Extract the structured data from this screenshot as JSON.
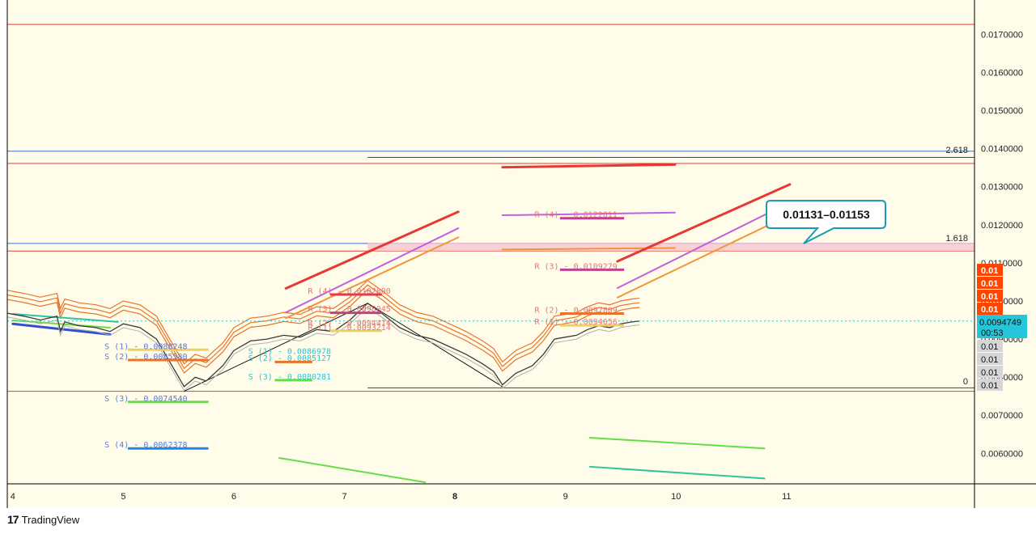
{
  "app": {
    "watermark": "TradingView",
    "logo_glyph": "17"
  },
  "colors": {
    "background": "#fffde9",
    "frame": "#000000",
    "resistance_red": "#e53935",
    "support_green": "#66dd44",
    "envelope": "#e8742c",
    "price_line": "#3a3a3a",
    "current_price_bg": "#26c6da",
    "fib_band": "#f7c6cf",
    "orange_label": "#ff4500",
    "grey_label": "#d6d6d6"
  },
  "chart_data": {
    "type": "line",
    "title": "",
    "xlabel": "",
    "ylabel": "",
    "ylim": [
      0.0052,
      0.0179
    ],
    "x_ticks": [
      {
        "label": "4",
        "x": 4.0
      },
      {
        "label": "5",
        "x": 5.0
      },
      {
        "label": "6",
        "x": 6.0
      },
      {
        "label": "7",
        "x": 7.0
      },
      {
        "label": "8",
        "x": 8.0
      },
      {
        "label": "9",
        "x": 9.0
      },
      {
        "label": "10",
        "x": 10.0
      },
      {
        "label": "11",
        "x": 11.0
      }
    ],
    "bold_x_tick": "8",
    "y_ticks": [
      {
        "label": "0.0170000",
        "v": 0.017
      },
      {
        "label": "0.0160000",
        "v": 0.016
      },
      {
        "label": "0.0150000",
        "v": 0.015
      },
      {
        "label": "0.0140000",
        "v": 0.014
      },
      {
        "label": "0.0130000",
        "v": 0.013
      },
      {
        "label": "0.0120000",
        "v": 0.012
      },
      {
        "label": "0.0110000",
        "v": 0.011
      },
      {
        "label": "0.0100000",
        "v": 0.01
      },
      {
        "label": "0.0090000",
        "v": 0.009
      },
      {
        "label": "0.0080000",
        "v": 0.008
      },
      {
        "label": "0.0070000",
        "v": 0.007
      },
      {
        "label": "0.0060000",
        "v": 0.006
      }
    ],
    "current_price": {
      "label": "0.0094749",
      "countdown": "00:53",
      "value": 0.0094749
    },
    "stacked_labels_orange": [
      "0.01",
      "0.01",
      "0.01",
      "0.01"
    ],
    "stacked_labels_grey": [
      "0.01",
      "0.01",
      "0.01",
      "0.01"
    ],
    "fib_levels": [
      {
        "label": "2.618",
        "value": 0.0138
      },
      {
        "label": "1.618",
        "value": 0.01149
      },
      {
        "label": "0",
        "value": 0.007725
      }
    ],
    "fib_band": [
      0.01131,
      0.01153
    ],
    "callout": "0.01131–0.01153",
    "horizontal_lines": [
      {
        "value": 0.01726,
        "color": "#e53935",
        "from_x": 3.95
      },
      {
        "value": 0.01393,
        "color": "#3a6fd8",
        "from_x": 3.95
      },
      {
        "value": 0.01361,
        "color": "#e53935",
        "from_x": 3.95
      },
      {
        "value": 0.01151,
        "color": "#3a6fd8",
        "from_x": 3.95
      },
      {
        "value": 0.01131,
        "color": "#e53935",
        "from_x": 3.95
      },
      {
        "value": 0.00763,
        "color": "#e53935",
        "from_x": 3.95
      },
      {
        "value": 0.01377,
        "color": "#444444",
        "from_x": 7.21
      },
      {
        "value": 0.00772,
        "color": "#444444",
        "from_x": 7.21
      }
    ],
    "pivot_labels": [
      {
        "text": "S (1) - 0.0088248",
        "x": 4.83,
        "v": 0.008825,
        "color": "#5a7bd8",
        "bar": {
          "x1": 5.04,
          "x2": 5.77,
          "v": 0.00872,
          "c": "#f0d060"
        }
      },
      {
        "text": "S (2) - 0.0085580",
        "x": 4.83,
        "v": 0.008558,
        "color": "#5a7bd8",
        "bar": {
          "x1": 5.04,
          "x2": 5.77,
          "v": 0.00845,
          "c": "#e8742c"
        }
      },
      {
        "text": "S (3) - 0.0074540",
        "x": 4.83,
        "v": 0.007454,
        "color": "#5a7bd8",
        "bar": {
          "x1": 5.04,
          "x2": 5.77,
          "v": 0.00735,
          "c": "#66dd44"
        }
      },
      {
        "text": "S (4) - 0.0062378",
        "x": 4.83,
        "v": 0.006238,
        "color": "#5a7bd8",
        "bar": {
          "x1": 5.04,
          "x2": 5.77,
          "v": 0.00613,
          "c": "#1e88e5"
        }
      },
      {
        "text": "S (1) - 0.0086978",
        "x": 6.13,
        "v": 0.008698,
        "color": "#26c6da",
        "bar": null
      },
      {
        "text": "S (2) - 0.0085127",
        "x": 6.13,
        "v": 0.008513,
        "color": "#26c6da",
        "bar": {
          "x1": 6.37,
          "x2": 6.71,
          "v": 0.0084,
          "c": "#e8742c"
        }
      },
      {
        "text": "S (3) - 0.0080281",
        "x": 6.13,
        "v": 0.008028,
        "color": "#26c6da",
        "bar": {
          "x1": 6.37,
          "x2": 6.71,
          "v": 0.00792,
          "c": "#66dd44"
        }
      },
      {
        "text": "R (4) - 0.0102800",
        "x": 6.67,
        "v": 0.01028,
        "color": "#e57373",
        "bar": {
          "x1": 6.87,
          "x2": 7.34,
          "v": 0.01017,
          "c": "#e53950"
        }
      },
      {
        "text": "R (3) - 0.0098045",
        "x": 6.67,
        "v": 0.009805,
        "color": "#e57373",
        "bar": {
          "x1": 6.87,
          "x2": 7.34,
          "v": 0.00969,
          "c": "#c04090"
        }
      },
      {
        "text": "R (2) - 0.0094414",
        "x": 6.67,
        "v": 0.009441,
        "color": "#e57373",
        "bar": null
      },
      {
        "text": "R (1) - 0.0093214",
        "x": 6.67,
        "v": 0.009321,
        "color": "#e57373",
        "bar": {
          "x1": 6.87,
          "x2": 7.34,
          "v": 0.00922,
          "c": "#f0d060"
        }
      },
      {
        "text": "R (4) - 0.0122811",
        "x": 8.72,
        "v": 0.012281,
        "color": "#e57373",
        "bar": {
          "x1": 8.95,
          "x2": 9.53,
          "v": 0.01217,
          "c": "#c04090"
        }
      },
      {
        "text": "R (3) - 0.0109279",
        "x": 8.72,
        "v": 0.010928,
        "color": "#e57373",
        "bar": {
          "x1": 8.95,
          "x2": 9.53,
          "v": 0.01082,
          "c": "#c04090"
        }
      },
      {
        "text": "R (2) - 0.0097809",
        "x": 8.72,
        "v": 0.009781,
        "color": "#e57373",
        "bar": {
          "x1": 8.95,
          "x2": 9.53,
          "v": 0.00967,
          "c": "#e8742c"
        }
      },
      {
        "text": "R (1) - 0.0094656",
        "x": 8.72,
        "v": 0.009466,
        "color": "#e57373",
        "bar": {
          "x1": 8.95,
          "x2": 9.53,
          "v": 0.00936,
          "c": "#f0d060"
        }
      }
    ],
    "trend_lines": [
      {
        "from": [
          4.0,
          0.00949
        ],
        "to": [
          4.88,
          0.0093
        ],
        "c": "#66dd44",
        "w": 2
      },
      {
        "from": [
          4.0,
          0.00966
        ],
        "to": [
          4.95,
          0.00945
        ],
        "c": "#2ec4a0",
        "w": 2
      },
      {
        "from": [
          4.0,
          0.0094
        ],
        "to": [
          4.88,
          0.00912
        ],
        "c": "#3050d0",
        "w": 3
      },
      {
        "from": [
          6.41,
          0.00588
        ],
        "to": [
          7.73,
          0.00524
        ],
        "c": "#66dd44",
        "w": 2
      },
      {
        "from": [
          6.47,
          0.01033
        ],
        "to": [
          8.03,
          0.01234
        ],
        "c": "#e53935",
        "w": 3
      },
      {
        "from": [
          6.47,
          0.0097
        ],
        "to": [
          8.03,
          0.01191
        ],
        "c": "#c060e0",
        "w": 2
      },
      {
        "from": [
          6.47,
          0.00955
        ],
        "to": [
          8.03,
          0.01167
        ],
        "c": "#f0963a",
        "w": 2
      },
      {
        "from": [
          8.43,
          0.01351
        ],
        "to": [
          9.99,
          0.01358
        ],
        "c": "#e53935",
        "w": 3
      },
      {
        "from": [
          8.43,
          0.01225
        ],
        "to": [
          9.99,
          0.01232
        ],
        "c": "#c060e0",
        "w": 2
      },
      {
        "from": [
          8.43,
          0.01135
        ],
        "to": [
          9.99,
          0.01139
        ],
        "c": "#f0963a",
        "w": 2
      },
      {
        "from": [
          9.47,
          0.01104
        ],
        "to": [
          11.03,
          0.01306
        ],
        "c": "#e53935",
        "w": 3
      },
      {
        "from": [
          9.47,
          0.01034
        ],
        "to": [
          11.03,
          0.01259
        ],
        "c": "#c060e0",
        "w": 2
      },
      {
        "from": [
          9.47,
          0.01009
        ],
        "to": [
          11.03,
          0.01226
        ],
        "c": "#f0963a",
        "w": 2
      },
      {
        "from": [
          9.22,
          0.00641
        ],
        "to": [
          10.8,
          0.00613
        ],
        "c": "#66dd44",
        "w": 2
      },
      {
        "from": [
          9.22,
          0.00565
        ],
        "to": [
          10.8,
          0.00534
        ],
        "c": "#2ec4a0",
        "w": 2
      },
      {
        "from": [
          5.55,
          0.00763
        ],
        "to": [
          7.21,
          0.00994
        ],
        "c": "#111111",
        "w": 1
      },
      {
        "from": [
          7.21,
          0.00994
        ],
        "to": [
          8.43,
          0.00775
        ],
        "c": "#111111",
        "w": 1
      }
    ],
    "price_series": {
      "x": [
        3.95,
        4.1,
        4.25,
        4.4,
        4.43,
        4.47,
        4.6,
        4.75,
        4.88,
        5.0,
        5.15,
        5.3,
        5.4,
        5.48,
        5.55,
        5.65,
        5.75,
        5.9,
        6.0,
        6.15,
        6.3,
        6.45,
        6.6,
        6.75,
        6.9,
        7.05,
        7.21,
        7.35,
        7.5,
        7.65,
        7.8,
        7.95,
        8.1,
        8.25,
        8.35,
        8.43,
        8.55,
        8.7,
        8.8,
        8.9,
        9.0,
        9.1,
        9.2,
        9.3,
        9.4,
        9.5,
        9.6,
        9.67
      ],
      "y": [
        0.00968,
        0.0096,
        0.0095,
        0.0096,
        0.0092,
        0.00945,
        0.00935,
        0.0093,
        0.0092,
        0.0094,
        0.0093,
        0.009,
        0.0085,
        0.0081,
        0.00775,
        0.008,
        0.0079,
        0.0083,
        0.0087,
        0.00895,
        0.009,
        0.0091,
        0.00905,
        0.00925,
        0.0092,
        0.0095,
        0.00994,
        0.00965,
        0.0093,
        0.0091,
        0.009,
        0.0088,
        0.0086,
        0.00835,
        0.00815,
        0.0078,
        0.0081,
        0.0083,
        0.0086,
        0.009,
        0.00905,
        0.0091,
        0.00925,
        0.00935,
        0.0093,
        0.0094,
        0.00945,
        0.00947
      ]
    },
    "envelope_offsets": [
      0.0006,
      0.00048,
      0.00036
    ]
  }
}
